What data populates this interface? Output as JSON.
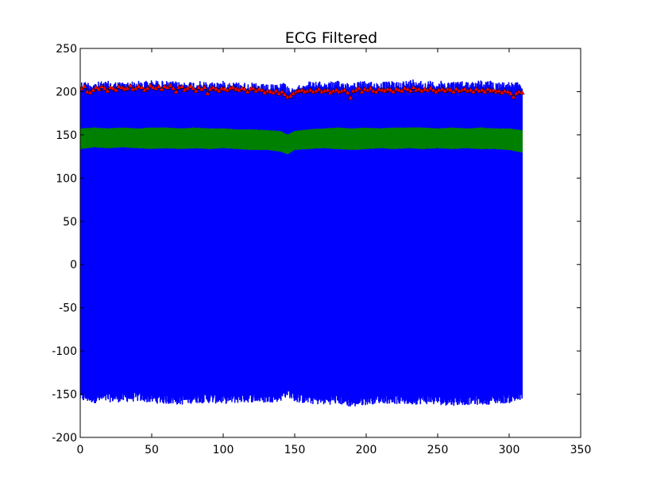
{
  "chart_data": {
    "type": "line",
    "title": "ECG Filtered",
    "xlabel": "",
    "ylabel": "",
    "xlim": [
      0,
      350
    ],
    "ylim": [
      -200,
      250
    ],
    "xticks": [
      0,
      50,
      100,
      150,
      200,
      250,
      300,
      350
    ],
    "yticks": [
      -200,
      -150,
      -100,
      -50,
      0,
      50,
      100,
      150,
      200,
      250
    ],
    "grid": false,
    "legend": "none",
    "series": [
      {
        "color": "#0000ff",
        "style": "line",
        "x_range": [
          0,
          309
        ],
        "upper_envelope": [
          [
            0,
            212
          ],
          [
            10,
            211
          ],
          [
            20,
            212
          ],
          [
            30,
            211
          ],
          [
            40,
            212
          ],
          [
            50,
            213
          ],
          [
            60,
            212
          ],
          [
            70,
            211
          ],
          [
            80,
            212
          ],
          [
            90,
            211
          ],
          [
            100,
            212
          ],
          [
            110,
            211
          ],
          [
            120,
            210
          ],
          [
            130,
            208
          ],
          [
            138,
            208
          ],
          [
            142,
            212
          ],
          [
            146,
            206
          ],
          [
            150,
            202
          ],
          [
            156,
            212
          ],
          [
            170,
            211
          ],
          [
            180,
            212
          ],
          [
            190,
            211
          ],
          [
            200,
            212
          ],
          [
            210,
            211
          ],
          [
            220,
            212
          ],
          [
            230,
            213
          ],
          [
            235,
            216
          ],
          [
            240,
            212
          ],
          [
            250,
            212
          ],
          [
            260,
            212
          ],
          [
            270,
            212
          ],
          [
            280,
            213
          ],
          [
            290,
            212
          ],
          [
            300,
            211
          ],
          [
            309,
            210
          ]
        ],
        "lower_envelope": [
          [
            0,
            -158
          ],
          [
            10,
            -160
          ],
          [
            20,
            -159
          ],
          [
            30,
            -159
          ],
          [
            40,
            -158
          ],
          [
            50,
            -160
          ],
          [
            60,
            -161
          ],
          [
            70,
            -162
          ],
          [
            80,
            -160
          ],
          [
            90,
            -160
          ],
          [
            100,
            -161
          ],
          [
            110,
            -160
          ],
          [
            120,
            -159
          ],
          [
            130,
            -160
          ],
          [
            140,
            -158
          ],
          [
            145,
            -152
          ],
          [
            150,
            -159
          ],
          [
            160,
            -161
          ],
          [
            170,
            -162
          ],
          [
            180,
            -161
          ],
          [
            190,
            -165
          ],
          [
            200,
            -162
          ],
          [
            210,
            -160
          ],
          [
            220,
            -161
          ],
          [
            230,
            -162
          ],
          [
            240,
            -161
          ],
          [
            250,
            -162
          ],
          [
            260,
            -163
          ],
          [
            270,
            -162
          ],
          [
            280,
            -162
          ],
          [
            290,
            -161
          ],
          [
            300,
            -160
          ],
          [
            309,
            -158
          ]
        ]
      },
      {
        "color": "#008000",
        "style": "line",
        "x_range": [
          0,
          309
        ],
        "upper_envelope": [
          [
            0,
            157
          ],
          [
            10,
            158
          ],
          [
            20,
            157
          ],
          [
            30,
            158
          ],
          [
            40,
            157
          ],
          [
            50,
            158
          ],
          [
            60,
            158
          ],
          [
            70,
            157
          ],
          [
            80,
            158
          ],
          [
            90,
            157
          ],
          [
            100,
            157
          ],
          [
            110,
            156
          ],
          [
            120,
            156
          ],
          [
            130,
            155
          ],
          [
            140,
            154
          ],
          [
            145,
            150
          ],
          [
            150,
            154
          ],
          [
            160,
            156
          ],
          [
            170,
            157
          ],
          [
            180,
            158
          ],
          [
            190,
            157
          ],
          [
            200,
            158
          ],
          [
            210,
            157
          ],
          [
            220,
            158
          ],
          [
            230,
            158
          ],
          [
            240,
            158
          ],
          [
            250,
            157
          ],
          [
            260,
            158
          ],
          [
            270,
            157
          ],
          [
            280,
            158
          ],
          [
            290,
            157
          ],
          [
            300,
            157
          ],
          [
            309,
            155
          ]
        ],
        "lower_envelope": [
          [
            0,
            134
          ],
          [
            10,
            136
          ],
          [
            20,
            135
          ],
          [
            30,
            136
          ],
          [
            40,
            135
          ],
          [
            50,
            134
          ],
          [
            60,
            135
          ],
          [
            70,
            134
          ],
          [
            80,
            135
          ],
          [
            90,
            134
          ],
          [
            100,
            135
          ],
          [
            110,
            134
          ],
          [
            120,
            133
          ],
          [
            130,
            133
          ],
          [
            140,
            131
          ],
          [
            145,
            128
          ],
          [
            150,
            133
          ],
          [
            160,
            134
          ],
          [
            170,
            135
          ],
          [
            180,
            134
          ],
          [
            190,
            133
          ],
          [
            200,
            134
          ],
          [
            210,
            135
          ],
          [
            220,
            134
          ],
          [
            230,
            135
          ],
          [
            240,
            134
          ],
          [
            250,
            135
          ],
          [
            260,
            134
          ],
          [
            270,
            135
          ],
          [
            280,
            134
          ],
          [
            290,
            134
          ],
          [
            300,
            133
          ],
          [
            309,
            130
          ]
        ]
      },
      {
        "color": "#ff0000",
        "style": "markers",
        "marker": "triangle",
        "x_range": [
          0,
          309
        ],
        "points": [
          [
            1,
            204
          ],
          [
            3,
            206
          ],
          [
            5,
            200
          ],
          [
            7,
            199
          ],
          [
            9,
            202
          ],
          [
            11,
            205
          ],
          [
            13,
            203
          ],
          [
            15,
            206
          ],
          [
            17,
            204
          ],
          [
            19,
            201
          ],
          [
            21,
            205
          ],
          [
            23,
            204
          ],
          [
            25,
            202
          ],
          [
            27,
            206
          ],
          [
            29,
            205
          ],
          [
            31,
            203
          ],
          [
            33,
            204
          ],
          [
            35,
            207
          ],
          [
            37,
            203
          ],
          [
            39,
            204
          ],
          [
            41,
            206
          ],
          [
            43,
            205
          ],
          [
            45,
            202
          ],
          [
            47,
            204
          ],
          [
            49,
            207
          ],
          [
            51,
            205
          ],
          [
            53,
            204
          ],
          [
            55,
            206
          ],
          [
            57,
            203
          ],
          [
            59,
            206
          ],
          [
            61,
            205
          ],
          [
            63,
            207
          ],
          [
            65,
            204
          ],
          [
            67,
            200
          ],
          [
            69,
            205
          ],
          [
            71,
            206
          ],
          [
            73,
            202
          ],
          [
            75,
            204
          ],
          [
            77,
            206
          ],
          [
            79,
            204
          ],
          [
            81,
            201
          ],
          [
            83,
            205
          ],
          [
            85,
            203
          ],
          [
            87,
            205
          ],
          [
            89,
            198
          ],
          [
            91,
            203
          ],
          [
            93,
            205
          ],
          [
            95,
            203
          ],
          [
            97,
            201
          ],
          [
            99,
            204
          ],
          [
            101,
            203
          ],
          [
            103,
            202
          ],
          [
            105,
            204
          ],
          [
            107,
            205
          ],
          [
            109,
            203
          ],
          [
            111,
            202
          ],
          [
            113,
            204
          ],
          [
            115,
            203
          ],
          [
            117,
            200
          ],
          [
            119,
            203
          ],
          [
            121,
            204
          ],
          [
            123,
            201
          ],
          [
            125,
            203
          ],
          [
            127,
            202
          ],
          [
            129,
            199
          ],
          [
            131,
            201
          ],
          [
            133,
            200
          ],
          [
            135,
            199
          ],
          [
            137,
            201
          ],
          [
            139,
            198
          ],
          [
            141,
            200
          ],
          [
            143,
            197
          ],
          [
            145,
            194
          ],
          [
            147,
            195
          ],
          [
            149,
            198
          ],
          [
            151,
            200
          ],
          [
            153,
            201
          ],
          [
            155,
            202
          ],
          [
            157,
            200
          ],
          [
            159,
            201
          ],
          [
            161,
            202
          ],
          [
            163,
            200
          ],
          [
            165,
            201
          ],
          [
            167,
            203
          ],
          [
            169,
            200
          ],
          [
            171,
            201
          ],
          [
            173,
            202
          ],
          [
            175,
            199
          ],
          [
            177,
            201
          ],
          [
            179,
            202
          ],
          [
            181,
            200
          ],
          [
            183,
            201
          ],
          [
            185,
            202
          ],
          [
            187,
            199
          ],
          [
            189,
            193
          ],
          [
            191,
            201
          ],
          [
            193,
            202
          ],
          [
            195,
            204
          ],
          [
            197,
            200
          ],
          [
            199,
            203
          ],
          [
            201,
            202
          ],
          [
            203,
            204
          ],
          [
            205,
            201
          ],
          [
            207,
            200
          ],
          [
            209,
            203
          ],
          [
            211,
            202
          ],
          [
            213,
            201
          ],
          [
            215,
            203
          ],
          [
            217,
            202
          ],
          [
            219,
            200
          ],
          [
            221,
            203
          ],
          [
            223,
            202
          ],
          [
            225,
            201
          ],
          [
            227,
            204
          ],
          [
            229,
            203
          ],
          [
            231,
            201
          ],
          [
            233,
            205
          ],
          [
            235,
            202
          ],
          [
            237,
            203
          ],
          [
            239,
            201
          ],
          [
            241,
            203
          ],
          [
            243,
            202
          ],
          [
            245,
            204
          ],
          [
            247,
            202
          ],
          [
            249,
            200
          ],
          [
            251,
            202
          ],
          [
            253,
            203
          ],
          [
            255,
            201
          ],
          [
            257,
            203
          ],
          [
            259,
            202
          ],
          [
            261,
            200
          ],
          [
            263,
            203
          ],
          [
            265,
            201
          ],
          [
            267,
            202
          ],
          [
            269,
            203
          ],
          [
            271,
            201
          ],
          [
            273,
            202
          ],
          [
            275,
            200
          ],
          [
            277,
            203
          ],
          [
            279,
            201
          ],
          [
            281,
            202
          ],
          [
            283,
            200
          ],
          [
            285,
            203
          ],
          [
            287,
            201
          ],
          [
            289,
            202
          ],
          [
            291,
            200
          ],
          [
            293,
            201
          ],
          [
            295,
            199
          ],
          [
            297,
            201
          ],
          [
            299,
            200
          ],
          [
            301,
            198
          ],
          [
            303,
            194
          ],
          [
            305,
            198
          ],
          [
            307,
            200
          ],
          [
            309,
            199
          ]
        ]
      }
    ]
  }
}
